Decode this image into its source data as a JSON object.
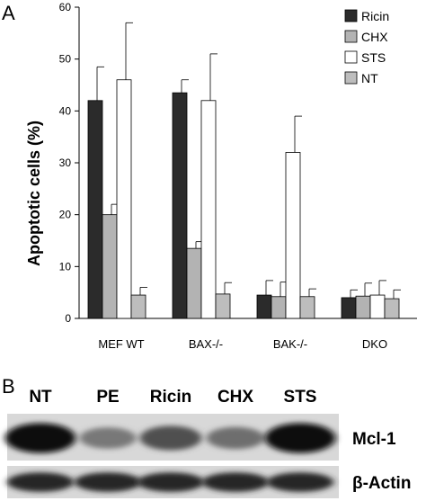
{
  "panel_labels": {
    "a": "A",
    "b": "B"
  },
  "chart_data": {
    "type": "bar",
    "title": "",
    "xlabel": "",
    "ylabel": "Apoptotic cells (%)",
    "ylim": [
      0,
      60
    ],
    "yticks": [
      0,
      10,
      20,
      30,
      40,
      50,
      60
    ],
    "grid": false,
    "legend_position": "top-right",
    "categories": [
      "MEF WT",
      "BAX-/-",
      "BAK-/-",
      "DKO"
    ],
    "series": [
      {
        "name": "Ricin",
        "color": "#2b2b2b",
        "values": [
          42,
          43.5,
          4.5,
          4.0
        ],
        "errors": [
          6.5,
          2.5,
          2.8,
          1.5
        ]
      },
      {
        "name": "CHX",
        "color": "#b3b3b3",
        "values": [
          20,
          13.5,
          4.2,
          4.3
        ],
        "errors": [
          2.0,
          1.3,
          2.8,
          2.5
        ]
      },
      {
        "name": "STS",
        "color": "#ffffff",
        "values": [
          46,
          42,
          32,
          4.5
        ],
        "errors": [
          11,
          9,
          7,
          2.8
        ]
      },
      {
        "name": "NT",
        "color": "#bdbdbd",
        "values": [
          4.5,
          4.7,
          4.2,
          3.8
        ],
        "errors": [
          1.5,
          2.2,
          1.5,
          1.7
        ]
      }
    ]
  },
  "blot": {
    "lanes": [
      "NT",
      "PE",
      "Ricin",
      "CHX",
      "STS"
    ],
    "rows": [
      {
        "label": "Mcl-1",
        "intensities": [
          0.95,
          0.4,
          0.6,
          0.45,
          0.95
        ]
      },
      {
        "label": "β-Actin",
        "intensities": [
          0.8,
          0.8,
          0.8,
          0.8,
          0.8
        ]
      }
    ]
  }
}
